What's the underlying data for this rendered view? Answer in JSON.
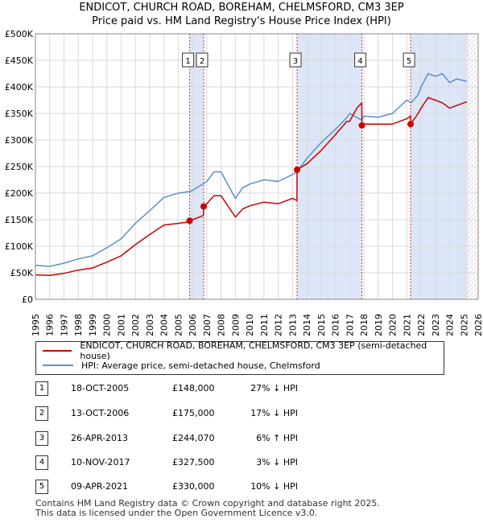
{
  "header": {
    "title": "ENDICOT, CHURCH ROAD, BOREHAM, CHELMSFORD, CM3 3EP",
    "subtitle": "Price paid vs. HM Land Registry's House Price Index (HPI)"
  },
  "legend": {
    "property_label": "ENDICOT, CHURCH ROAD, BOREHAM, CHELMSFORD, CM3 3EP (semi-detached house)",
    "hpi_label": "HPI: Average price, semi-detached house, Chelmsford"
  },
  "transactions": [
    {
      "num": "1",
      "date": "18-OCT-2005",
      "price": "£148,000",
      "hpi": "27% ↓ HPI"
    },
    {
      "num": "2",
      "date": "13-OCT-2006",
      "price": "£175,000",
      "hpi": "17% ↓ HPI"
    },
    {
      "num": "3",
      "date": "26-APR-2013",
      "price": "£244,070",
      "hpi": "6% ↑ HPI"
    },
    {
      "num": "4",
      "date": "10-NOV-2017",
      "price": "£327,500",
      "hpi": "3% ↓ HPI"
    },
    {
      "num": "5",
      "date": "09-APR-2021",
      "price": "£330,000",
      "hpi": "10% ↓ HPI"
    }
  ],
  "footer": {
    "line1": "Contains HM Land Registry data © Crown copyright and database right 2025.",
    "line2": "This data is licensed under the Open Government Licence v3.0."
  },
  "colors": {
    "property": "#cc0000",
    "hpi": "#5b8fcc",
    "shade": "#dde6f7",
    "grid": "#d9d9d9"
  },
  "chart_data": {
    "type": "line",
    "xlim": [
      1995,
      2026
    ],
    "ylim": [
      0,
      500000
    ],
    "x_ticks": [
      "1995",
      "1996",
      "1997",
      "1998",
      "1999",
      "2000",
      "2001",
      "2002",
      "2003",
      "2004",
      "2005",
      "2006",
      "2007",
      "2008",
      "2009",
      "2010",
      "2011",
      "2012",
      "2013",
      "2014",
      "2015",
      "2016",
      "2017",
      "2018",
      "2019",
      "2020",
      "2021",
      "2022",
      "2023",
      "2024",
      "2025",
      "2026"
    ],
    "y_ticks": [
      {
        "value": 0,
        "label": "£0"
      },
      {
        "value": 50000,
        "label": "£50K"
      },
      {
        "value": 100000,
        "label": "£100K"
      },
      {
        "value": 150000,
        "label": "£150K"
      },
      {
        "value": 200000,
        "label": "£200K"
      },
      {
        "value": 250000,
        "label": "£250K"
      },
      {
        "value": 300000,
        "label": "£300K"
      },
      {
        "value": 350000,
        "label": "£350K"
      },
      {
        "value": 400000,
        "label": "£400K"
      },
      {
        "value": 450000,
        "label": "£450K"
      },
      {
        "value": 500000,
        "label": "£500K"
      }
    ],
    "grid": true,
    "ownership_spans": [
      [
        2005.8,
        2006.78
      ],
      [
        2013.32,
        2017.86
      ],
      [
        2021.27,
        2025.3
      ]
    ],
    "hatched_future_from": 2025.3,
    "sales": [
      {
        "label": "1",
        "x": 2005.8,
        "y": 148000
      },
      {
        "label": "2",
        "x": 2006.78,
        "y": 175000
      },
      {
        "label": "3",
        "x": 2013.32,
        "y": 244070
      },
      {
        "label": "4",
        "x": 2017.86,
        "y": 327500
      },
      {
        "label": "5",
        "x": 2021.27,
        "y": 330000
      }
    ],
    "series": [
      {
        "name": "HPI: Average price, semi-detached house, Chelmsford",
        "x": [
          1995.0,
          1996.0,
          1997.0,
          1998.0,
          1999.0,
          2000.0,
          2001.0,
          2002.0,
          2003.0,
          2004.0,
          2005.0,
          2005.8,
          2006.0,
          2007.0,
          2007.5,
          2008.0,
          2008.5,
          2009.0,
          2009.5,
          2010.0,
          2011.0,
          2012.0,
          2013.0,
          2013.3,
          2014.0,
          2015.0,
          2016.0,
          2016.8,
          2017.0,
          2017.8,
          2018.0,
          2019.0,
          2020.0,
          2021.0,
          2021.3,
          2021.8,
          2022.0,
          2022.5,
          2023.0,
          2023.5,
          2024.0,
          2024.5,
          2025.0,
          2025.2
        ],
        "y": [
          64000,
          62000,
          68000,
          76000,
          82000,
          97000,
          114000,
          143000,
          167000,
          192000,
          200000,
          203000,
          205000,
          222000,
          240000,
          240000,
          215000,
          190000,
          210000,
          217000,
          225000,
          222000,
          235000,
          240000,
          265000,
          295000,
          320000,
          342000,
          350000,
          338000,
          345000,
          343000,
          350000,
          375000,
          370000,
          385000,
          400000,
          425000,
          420000,
          425000,
          408000,
          415000,
          412000,
          410000
        ]
      },
      {
        "name": "ENDICOT, CHURCH ROAD, BOREHAM, CHELMSFORD, CM3 3EP (semi-detached house)",
        "x": [
          1995.0,
          1996.0,
          1997.0,
          1998.0,
          1999.0,
          2000.0,
          2001.0,
          2002.0,
          2003.0,
          2004.0,
          2005.0,
          2005.79,
          2005.8,
          2006.0,
          2006.5,
          2006.77,
          2006.78,
          2007.0,
          2007.5,
          2008.0,
          2008.5,
          2009.0,
          2009.5,
          2010.0,
          2011.0,
          2012.0,
          2013.0,
          2013.31,
          2013.32,
          2014.0,
          2015.0,
          2016.0,
          2016.8,
          2017.0,
          2017.5,
          2017.85,
          2017.86,
          2018.0,
          2019.0,
          2020.0,
          2021.0,
          2021.26,
          2021.27,
          2021.8,
          2022.0,
          2022.5,
          2023.0,
          2023.5,
          2024.0,
          2024.5,
          2025.0,
          2025.2
        ],
        "y": [
          46000,
          45000,
          49000,
          55000,
          59000,
          70000,
          82000,
          103000,
          122000,
          140000,
          143000,
          146000,
          148000,
          150000,
          155000,
          158000,
          175000,
          180000,
          195000,
          195000,
          175000,
          155000,
          170000,
          176000,
          183000,
          180000,
          190000,
          186000,
          244070,
          255000,
          280000,
          310000,
          335000,
          335000,
          360000,
          370000,
          327500,
          330000,
          330000,
          330000,
          340000,
          345000,
          330000,
          350000,
          360000,
          380000,
          375000,
          370000,
          360000,
          365000,
          370000,
          372000
        ]
      }
    ]
  }
}
